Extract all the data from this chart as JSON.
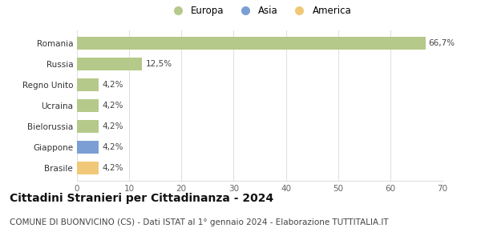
{
  "categories": [
    "Brasile",
    "Giappone",
    "Bielorussia",
    "Ucraina",
    "Regno Unito",
    "Russia",
    "Romania"
  ],
  "values": [
    4.2,
    4.2,
    4.2,
    4.2,
    4.2,
    12.5,
    66.7
  ],
  "bar_colors": [
    "#f0c878",
    "#7b9fd4",
    "#b5c98a",
    "#b5c98a",
    "#b5c98a",
    "#b5c98a",
    "#b5c98a"
  ],
  "labels": [
    "4,2%",
    "4,2%",
    "4,2%",
    "4,2%",
    "4,2%",
    "12,5%",
    "66,7%"
  ],
  "legend_labels": [
    "Europa",
    "Asia",
    "America"
  ],
  "legend_colors": [
    "#b5c98a",
    "#7b9fd4",
    "#f0c878"
  ],
  "title": "Cittadini Stranieri per Cittadinanza - 2024",
  "subtitle": "COMUNE DI BUONVICINO (CS) - Dati ISTAT al 1° gennaio 2024 - Elaborazione TUTTITALIA.IT",
  "xlim": [
    0,
    70
  ],
  "xticks": [
    0,
    10,
    20,
    30,
    40,
    50,
    60,
    70
  ],
  "background_color": "#ffffff",
  "grid_color": "#e0e0e0",
  "title_fontsize": 10,
  "subtitle_fontsize": 7.5,
  "label_fontsize": 7.5,
  "tick_fontsize": 7.5,
  "legend_fontsize": 8.5
}
